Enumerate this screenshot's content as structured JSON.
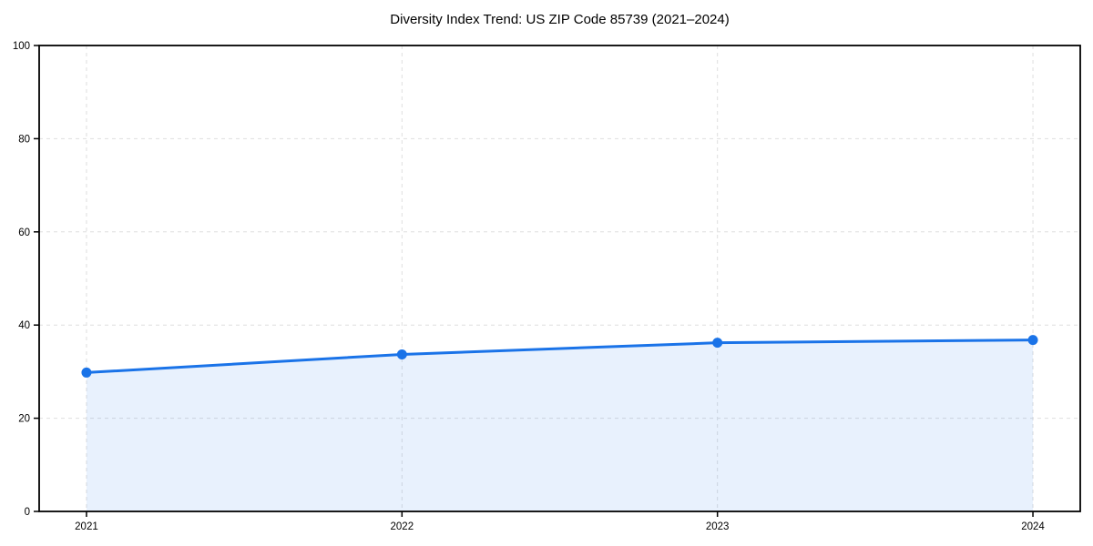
{
  "chart_data": {
    "type": "line",
    "title": "Diversity Index Trend: US ZIP Code 85739 (2021–2024)",
    "x": [
      2021,
      2022,
      2023,
      2024
    ],
    "xtick_labels": [
      "2021",
      "2022",
      "2023",
      "2024"
    ],
    "series": [
      {
        "name": "Diversity Index",
        "values": [
          29.8,
          33.7,
          36.2,
          36.8
        ]
      }
    ],
    "xlabel": "",
    "ylabel": "",
    "ylim": [
      0,
      100
    ],
    "yticks": [
      0,
      20,
      40,
      60,
      80,
      100
    ],
    "ytick_labels": [
      "0",
      "20",
      "40",
      "60",
      "80",
      "100"
    ],
    "x_margin": 0.15,
    "grid": "dashed",
    "legend_position": "none",
    "area_fill": true,
    "colors": {
      "line": "#1a73e8",
      "marker": "#1a73e8",
      "fill": "#1a73e8",
      "fill_opacity": 0.1,
      "grid": "#dedede",
      "axis": "#000000",
      "text": "#000000",
      "background": "#ffffff"
    }
  }
}
